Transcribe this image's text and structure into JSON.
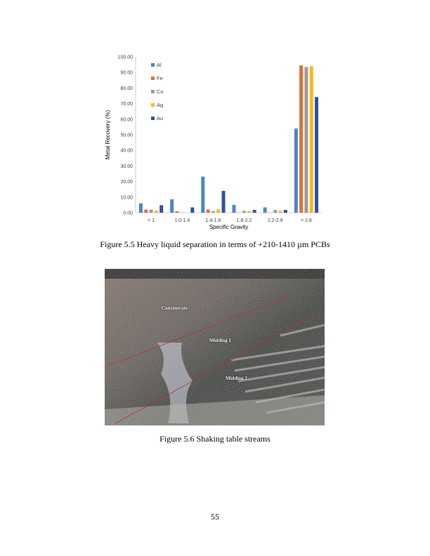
{
  "figure1": {
    "caption": "Figure 5.5 Heavy liquid separation in terms of +210-1410 µm PCBs"
  },
  "chart_data": {
    "type": "bar",
    "title": "",
    "xlabel": "Specific Gravity",
    "ylabel": "Metal Recovery (%)",
    "ylim": [
      0,
      100
    ],
    "yticks": [
      "0.00",
      "10.00",
      "20.00",
      "30.00",
      "40.00",
      "50.00",
      "60.00",
      "70.00",
      "80.00",
      "90.00",
      "100.00"
    ],
    "grid": false,
    "legend_placement": "top-left",
    "categories": [
      "< 1",
      "1.0-1.4",
      "1.4-1.8",
      "1.8-2.2",
      "2.2-2.8",
      "> 2.8"
    ],
    "series": [
      {
        "name": "Al",
        "color": "#4a86c8",
        "values": [
          6.0,
          8.6,
          23.2,
          5.0,
          3.4,
          54.0
        ]
      },
      {
        "name": "Fe",
        "color": "#e2702e",
        "values": [
          2.0,
          1.0,
          2.0,
          0.1,
          0.1,
          94.5
        ]
      },
      {
        "name": "Cu",
        "color": "#9a9a9a",
        "values": [
          2.0,
          0.2,
          1.0,
          1.2,
          1.8,
          93.5
        ]
      },
      {
        "name": "Ag",
        "color": "#f7b817",
        "values": [
          1.4,
          0.0,
          2.2,
          1.0,
          1.2,
          94.0
        ]
      },
      {
        "name": "Au",
        "color": "#2e4fa6",
        "values": [
          4.8,
          3.4,
          14.0,
          1.8,
          1.8,
          74.2
        ]
      }
    ]
  },
  "figure2": {
    "labels": [
      "Concentrate",
      "Midding 1",
      "Midding 2"
    ],
    "caption": "Figure 5.6 Shaking table streams"
  },
  "page_number": "55"
}
